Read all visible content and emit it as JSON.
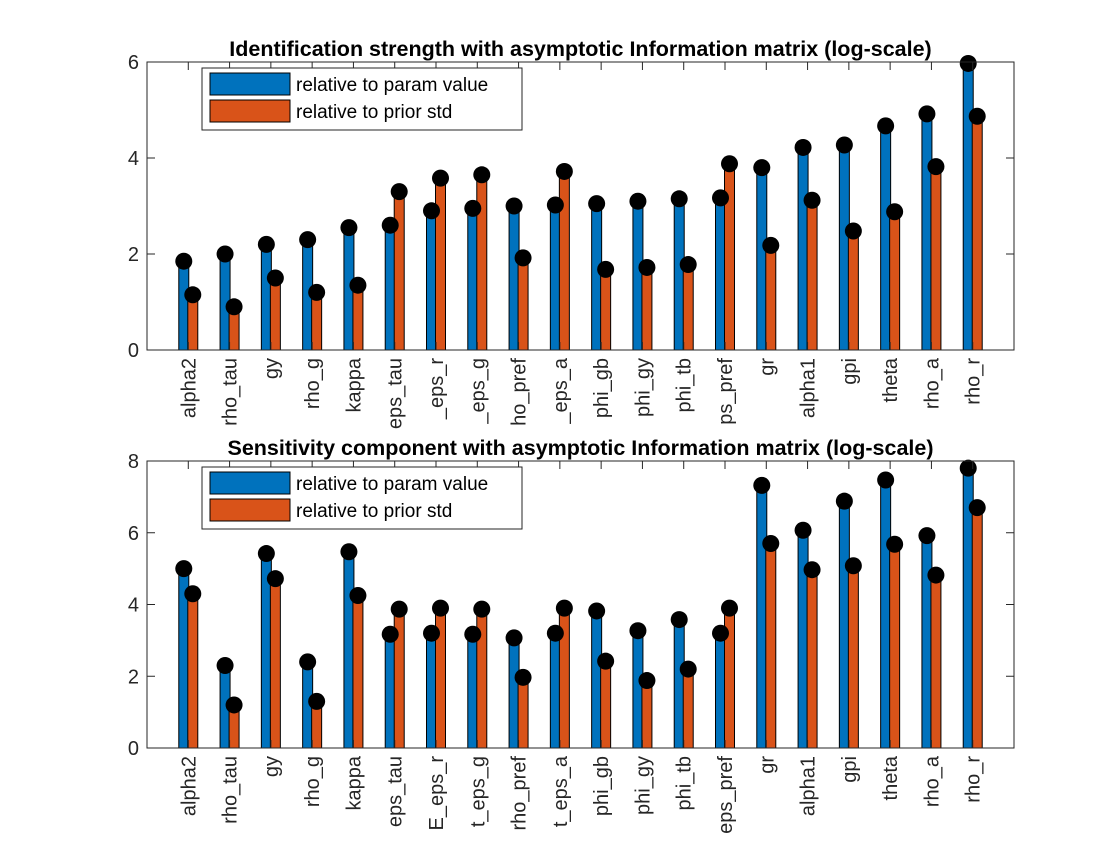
{
  "chart_data": [
    {
      "type": "bar",
      "title": "Identification strength with asymptotic Information matrix (log-scale)",
      "xlabel": "",
      "ylabel": "",
      "ylim": [
        0,
        6
      ],
      "yticks": [
        0,
        2,
        4,
        6
      ],
      "grid": false,
      "legend_position": "top-left",
      "categories": [
        "alpha2",
        "rho_tau",
        "gy",
        "rho_g",
        "kappa",
        "eps_tau",
        "eps_r",
        "eps_g",
        "rho_pref",
        "eps_a",
        "phi_gb",
        "phi_gy",
        "phi_tb",
        "eps_pref",
        "gr",
        "alpha1",
        "gpi",
        "theta",
        "rho_a",
        "rho_r"
      ],
      "tick_labels": [
        "alpha2",
        "rho_tau",
        "gy",
        "rho_g",
        "kappa",
        "eps_tau",
        "_eps_r",
        "_eps_g",
        "ho_pref",
        "_eps_a",
        "phi_gb",
        "phi_gy",
        "phi_tb",
        "ps_pref",
        "gr",
        "alpha1",
        "gpi",
        "theta",
        "rho_a",
        "rho_r"
      ],
      "series": [
        {
          "name": "relative to param value",
          "color": "#0072BD",
          "values": [
            1.85,
            2.0,
            2.2,
            2.3,
            2.55,
            2.6,
            2.9,
            2.95,
            3.0,
            3.02,
            3.05,
            3.1,
            3.15,
            3.17,
            3.8,
            4.22,
            4.27,
            4.67,
            4.92,
            5.97
          ]
        },
        {
          "name": "relative to prior std",
          "color": "#D95319",
          "values": [
            1.15,
            0.9,
            1.5,
            1.2,
            1.35,
            3.3,
            3.58,
            3.65,
            1.92,
            3.72,
            1.68,
            1.72,
            1.78,
            3.88,
            2.18,
            3.12,
            2.48,
            2.88,
            3.82,
            4.87
          ]
        }
      ]
    },
    {
      "type": "bar",
      "title": "Sensitivity component with asymptotic Information matrix (log-scale)",
      "xlabel": "",
      "ylabel": "",
      "ylim": [
        0,
        8
      ],
      "yticks": [
        0,
        2,
        4,
        6,
        8
      ],
      "grid": false,
      "legend_position": "top-left",
      "categories": [
        "alpha2",
        "rho_tau",
        "gy",
        "rho_g",
        "kappa",
        "eps_tau",
        "eps_r",
        "eps_g",
        "rho_pref",
        "eps_a",
        "phi_gb",
        "phi_gy",
        "phi_tb",
        "eps_pref",
        "gr",
        "alpha1",
        "gpi",
        "theta",
        "rho_a",
        "rho_r"
      ],
      "tick_labels": [
        "alpha2",
        "rho_tau",
        "gy",
        "rho_g",
        "kappa",
        "eps_tau",
        "E_eps_r",
        "t_eps_g",
        "rho_pref",
        "t_eps_a",
        "phi_gb",
        "phi_gy",
        "phi_tb",
        "eps_pref",
        "gr",
        "alpha1",
        "gpi",
        "theta",
        "rho_a",
        "rho_r"
      ],
      "series": [
        {
          "name": "relative to param value",
          "color": "#0072BD",
          "values": [
            5.0,
            2.3,
            5.42,
            2.4,
            5.47,
            3.17,
            3.2,
            3.17,
            3.07,
            3.2,
            3.82,
            3.27,
            3.58,
            3.2,
            7.32,
            6.07,
            6.88,
            7.47,
            5.92,
            7.8
          ]
        },
        {
          "name": "relative to prior std",
          "color": "#D95319",
          "values": [
            4.3,
            1.2,
            4.72,
            1.3,
            4.25,
            3.87,
            3.9,
            3.87,
            1.97,
            3.9,
            2.42,
            1.88,
            2.2,
            3.9,
            5.7,
            4.97,
            5.08,
            5.68,
            4.82,
            6.7
          ]
        }
      ]
    }
  ]
}
